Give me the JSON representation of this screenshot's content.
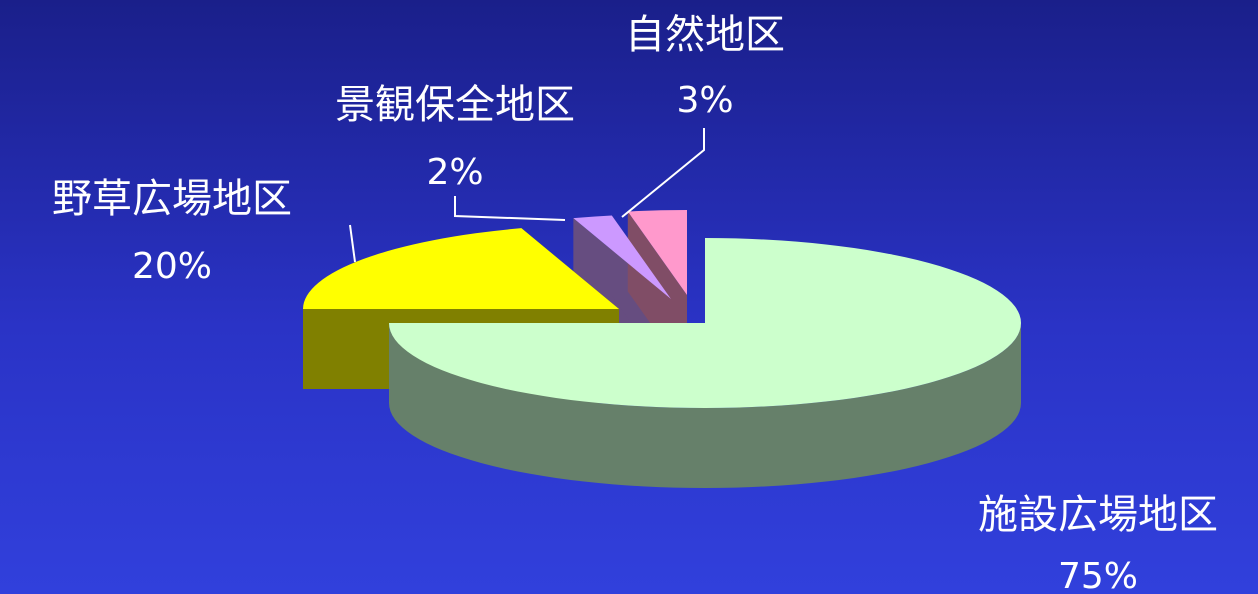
{
  "chart_data": {
    "type": "pie",
    "three_d": true,
    "legend": "none",
    "title": "",
    "slices": [
      {
        "label": "施設広場地区",
        "value": 75,
        "percent_label": "75%",
        "top_color": "#ccffcc",
        "side_color": "#66806a"
      },
      {
        "label": "野草広場地区",
        "value": 20,
        "percent_label": "20%",
        "top_color": "#ffff00",
        "side_color": "#808000"
      },
      {
        "label": "景観保全地区",
        "value": 2,
        "percent_label": "2%",
        "top_color": "#cc99ff",
        "side_color": "#664d80"
      },
      {
        "label": "自然地区",
        "value": 3,
        "percent_label": "3%",
        "top_color": "#ff99cc",
        "side_color": "#804d66"
      }
    ]
  }
}
